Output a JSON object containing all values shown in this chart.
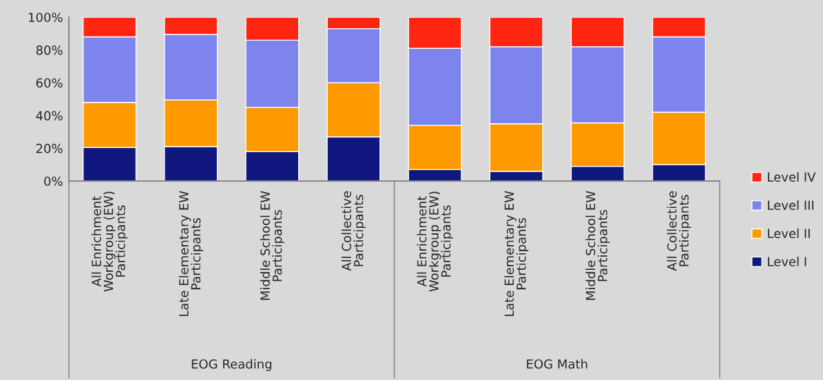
{
  "chart_data": {
    "type": "bar",
    "stacked": true,
    "categories": [
      "All Enrichment\nWorkgroup (EW)\nParticipants",
      "Late Elementary EW\nParticipants",
      "Middle School EW\nParticipants",
      "All Collective\nParticipants",
      "All Enrichment\nWorkgroup (EW)\nParticipants",
      "Late Elementary EW\nParticipants",
      "Middle School EW\nParticipants",
      "All Collective\nParticipants"
    ],
    "series": [
      {
        "name": "Level I",
        "color": "#10187f",
        "values": [
          20.5,
          21,
          18,
          27,
          7,
          6,
          9,
          10
        ]
      },
      {
        "name": "Level II",
        "color": "#ff9900",
        "values": [
          27.5,
          28.5,
          27,
          33,
          27,
          29,
          26.5,
          32
        ]
      },
      {
        "name": "Level III",
        "color": "#7e84ee",
        "values": [
          40,
          40,
          41,
          33,
          47,
          47,
          46.5,
          46
        ]
      },
      {
        "name": "Level IV",
        "color": "#ff2510",
        "values": [
          12,
          10.5,
          14,
          7,
          19,
          18,
          18,
          12
        ]
      }
    ],
    "annotations": [
      "EOG Reading",
      "EOG Math"
    ],
    "ylim": [
      0,
      100
    ],
    "yticks": [
      {
        "value": 0,
        "label": "0%"
      },
      {
        "value": 20,
        "label": "20%"
      },
      {
        "value": 40,
        "label": "40%"
      },
      {
        "value": 60,
        "label": "60%"
      },
      {
        "value": 80,
        "label": "80%"
      },
      {
        "value": 100,
        "label": "100%"
      }
    ],
    "grid": false,
    "legend": "right"
  }
}
